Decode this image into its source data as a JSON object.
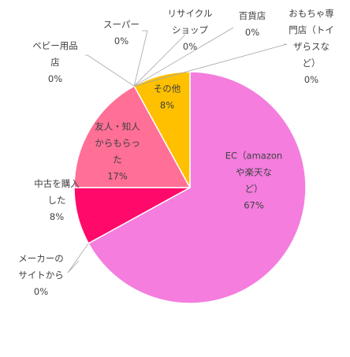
{
  "chart_data": {
    "type": "pie",
    "title": "",
    "slices": [
      {
        "label": "EC（amazonや楽天など）",
        "label_lines": [
          "EC（amazon",
          "や楽天な",
          "ど）"
        ],
        "value": 67,
        "display": "67%",
        "color": "#F47DDE"
      },
      {
        "label": "メーカーのサイトから",
        "label_lines": [
          "メーカーの",
          "サイトから"
        ],
        "value": 0,
        "display": "0%",
        "color": "#E23AB0"
      },
      {
        "label": "中古を購入した",
        "label_lines": [
          "中古を購入",
          "した"
        ],
        "value": 8,
        "display": "8%",
        "color": "#FF0A6A"
      },
      {
        "label": "友人・知人からもらった",
        "label_lines": [
          "友人・知人",
          "からもらっ",
          "た"
        ],
        "value": 17,
        "display": "17%",
        "color": "#FF6F96"
      },
      {
        "label": "ベビー用品店",
        "label_lines": [
          "ベビー用品",
          "店"
        ],
        "value": 0,
        "display": "0%",
        "color": "#FFB3C7"
      },
      {
        "label": "スーパー",
        "label_lines": [
          "スーパー"
        ],
        "value": 0,
        "display": "0%",
        "color": "#FFD966"
      },
      {
        "label": "リサイクルショップ",
        "label_lines": [
          "リサイクル",
          "ショップ"
        ],
        "value": 0,
        "display": "0%",
        "color": "#F4B183"
      },
      {
        "label": "百貨店",
        "label_lines": [
          "百貨店"
        ],
        "value": 0,
        "display": "0%",
        "color": "#C9A0DC"
      },
      {
        "label": "おもちゃ専門店（トイザらスなど）",
        "label_lines": [
          "おもちゃ専",
          "門店（トイ",
          "ザらスな",
          "ど）"
        ],
        "value": 0,
        "display": "0%",
        "color": "#9DC3E6"
      },
      {
        "label": "その他",
        "label_lines": [
          "その他"
        ],
        "value": 8,
        "display": "8%",
        "color": "#FFC000"
      }
    ],
    "legend": "none"
  }
}
